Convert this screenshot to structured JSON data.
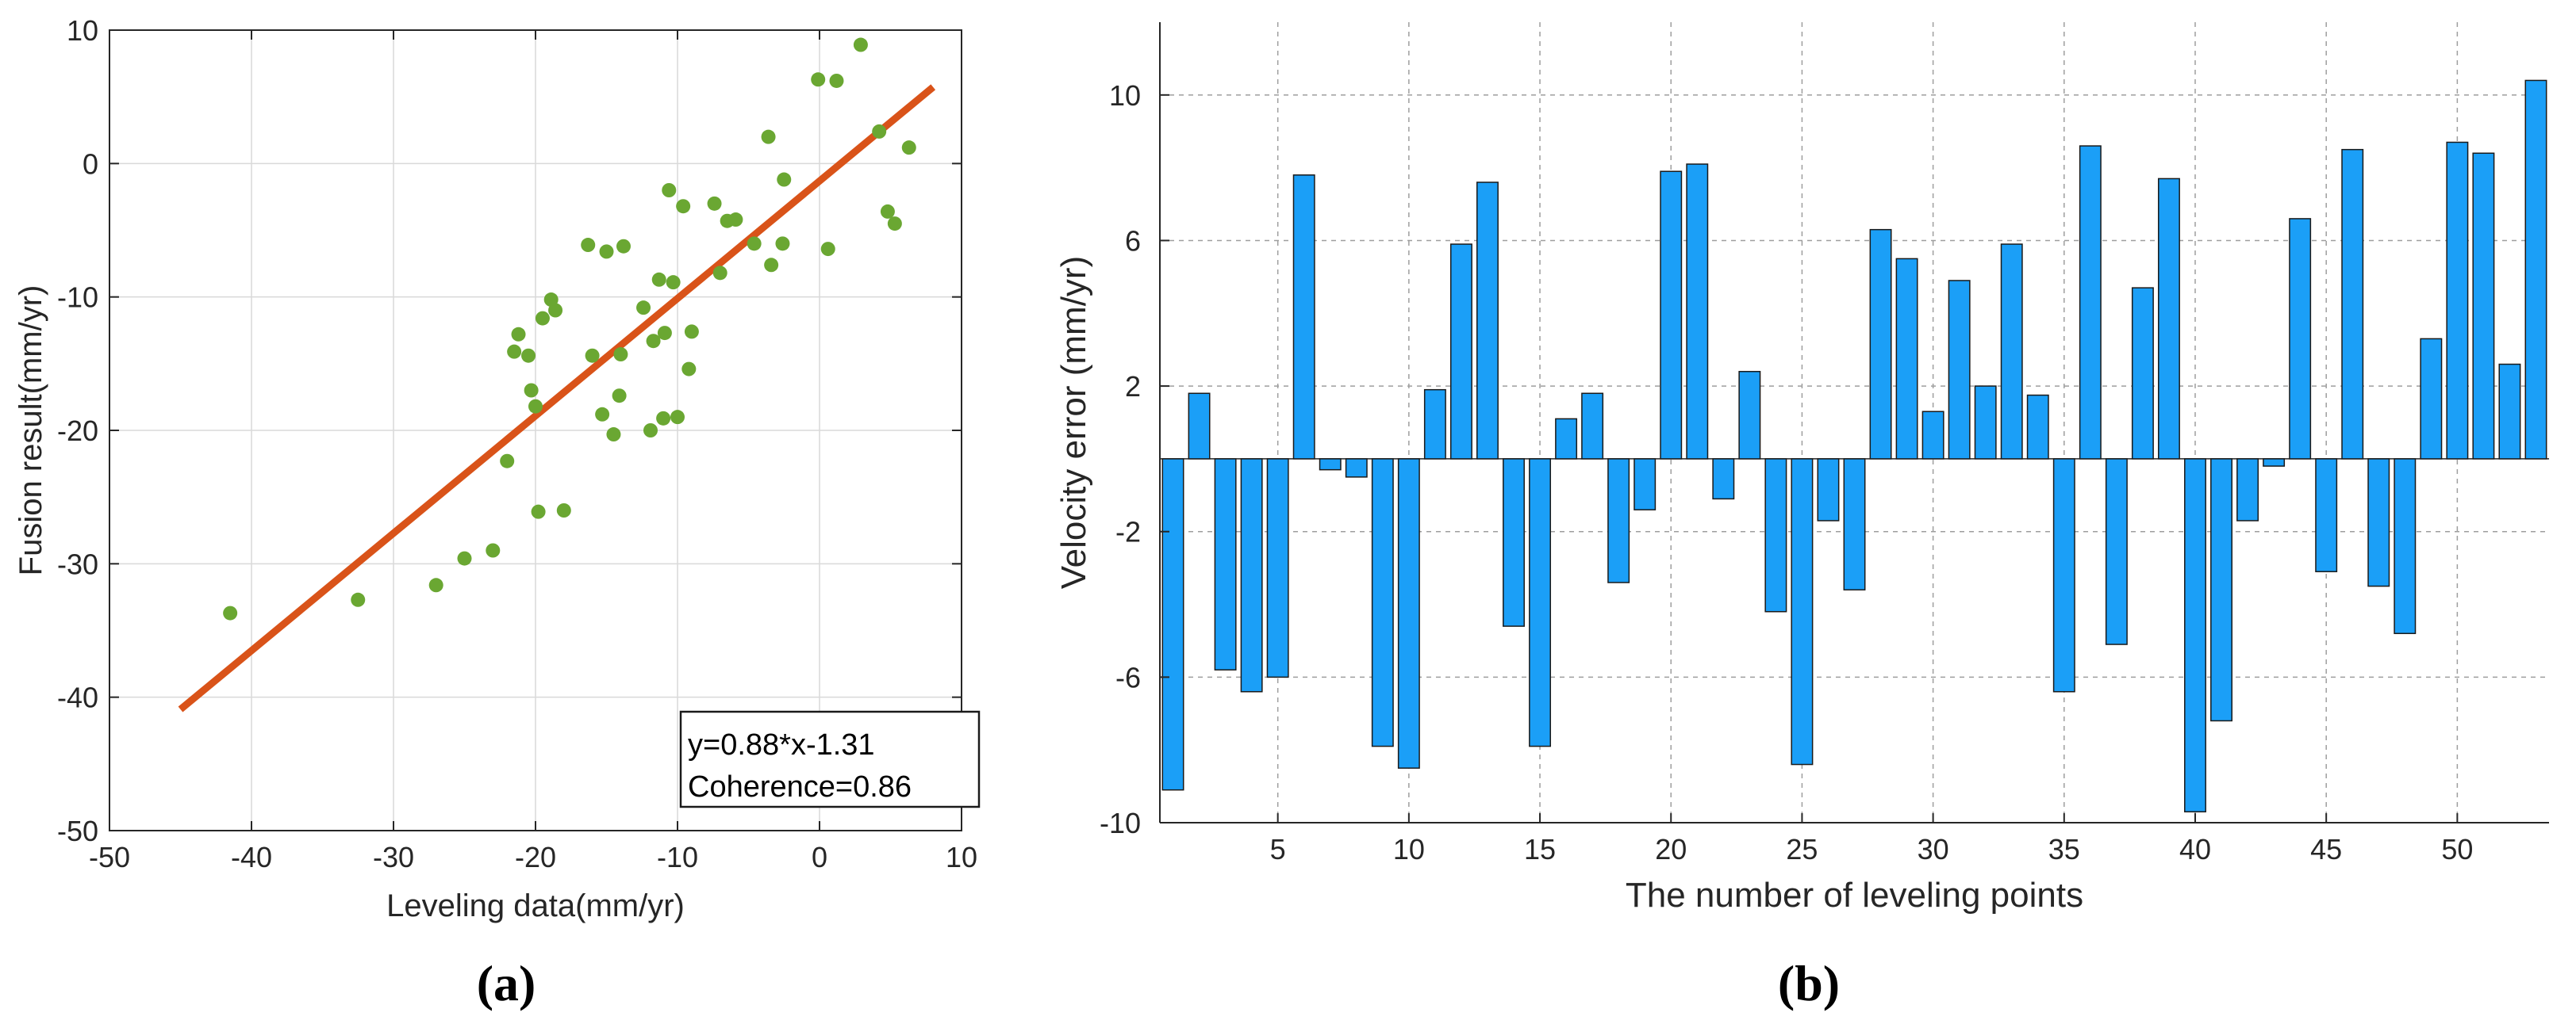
{
  "colors": {
    "scatter_point": "#6aa732",
    "fit_line": "#d95319",
    "bar_fill": "#1b9ff7",
    "bar_edge": "#1a1a1a",
    "grid": "#d9d9d9",
    "axis": "#262626"
  },
  "panels": {
    "a_label": "(a)",
    "b_label": "(b)"
  },
  "chart_data": [
    {
      "type": "scatter",
      "panel": "(a)",
      "xlabel": "Leveling data(mm/yr)",
      "ylabel": "Fusion result(mm/yr)",
      "xlim": [
        -50,
        10
      ],
      "ylim": [
        -50,
        10
      ],
      "xticks": [
        -50,
        -40,
        -30,
        -20,
        -10,
        0,
        10
      ],
      "yticks": [
        -50,
        -40,
        -30,
        -20,
        -10,
        0,
        10
      ],
      "grid": true,
      "fit": {
        "slope": 0.88,
        "intercept": -1.31,
        "x_range": [
          -45,
          8
        ]
      },
      "legend_lines": [
        "y=0.88*x-1.31",
        "Coherence=0.86"
      ],
      "legend_position": "bottom-right",
      "points": [
        [
          -41.5,
          -33.7
        ],
        [
          -32.5,
          -32.7
        ],
        [
          -27.0,
          -31.6
        ],
        [
          -25.0,
          -29.6
        ],
        [
          -23.0,
          -29.0
        ],
        [
          -22.0,
          -22.3
        ],
        [
          -21.5,
          -14.1
        ],
        [
          -21.2,
          -12.8
        ],
        [
          -20.5,
          -14.4
        ],
        [
          -20.3,
          -17.0
        ],
        [
          -20.0,
          -18.2
        ],
        [
          -19.8,
          -26.1
        ],
        [
          -19.5,
          -11.6
        ],
        [
          -18.9,
          -10.2
        ],
        [
          -18.6,
          -11.0
        ],
        [
          -18.0,
          -26.0
        ],
        [
          -16.3,
          -6.1
        ],
        [
          -16.0,
          -14.4
        ],
        [
          -15.3,
          -18.8
        ],
        [
          -15.0,
          -6.6
        ],
        [
          -14.5,
          -20.3
        ],
        [
          -14.1,
          -17.4
        ],
        [
          -14.0,
          -14.3
        ],
        [
          -13.8,
          -6.2
        ],
        [
          -12.4,
          -10.8
        ],
        [
          -11.9,
          -20.0
        ],
        [
          -11.7,
          -13.3
        ],
        [
          -11.3,
          -8.7
        ],
        [
          -11.0,
          -19.1
        ],
        [
          -10.9,
          -12.7
        ],
        [
          -10.6,
          -2.0
        ],
        [
          -10.3,
          -8.9
        ],
        [
          -10.0,
          -19.0
        ],
        [
          -9.6,
          -3.2
        ],
        [
          -9.2,
          -15.4
        ],
        [
          -9.0,
          -12.6
        ],
        [
          -7.4,
          -3.0
        ],
        [
          -7.0,
          -8.2
        ],
        [
          -6.5,
          -4.3
        ],
        [
          -5.9,
          -4.2
        ],
        [
          -4.6,
          -6.0
        ],
        [
          -3.6,
          2.0
        ],
        [
          -3.4,
          -7.6
        ],
        [
          -2.6,
          -6.0
        ],
        [
          -2.5,
          -1.2
        ],
        [
          -0.1,
          6.3
        ],
        [
          0.6,
          -6.4
        ],
        [
          1.2,
          6.2
        ],
        [
          2.9,
          8.9
        ],
        [
          4.2,
          2.4
        ],
        [
          4.8,
          -3.6
        ],
        [
          5.3,
          -4.5
        ],
        [
          6.3,
          1.2
        ]
      ]
    },
    {
      "type": "bar",
      "panel": "(b)",
      "xlabel": "The number of leveling points",
      "ylabel": "Velocity error (mm/yr)",
      "xlim": [
        0.5,
        53.5
      ],
      "ylim": [
        -10,
        12
      ],
      "xticks": [
        5,
        10,
        15,
        20,
        25,
        30,
        35,
        40,
        45,
        50
      ],
      "yticks": [
        -10,
        -6,
        -2,
        2,
        6,
        10
      ],
      "grid": true,
      "categories": [
        1,
        2,
        3,
        4,
        5,
        6,
        7,
        8,
        9,
        10,
        11,
        12,
        13,
        14,
        15,
        16,
        17,
        18,
        19,
        20,
        21,
        22,
        23,
        24,
        25,
        26,
        27,
        28,
        29,
        30,
        31,
        32,
        33,
        34,
        35,
        36,
        37,
        38,
        39,
        40,
        41,
        42,
        43,
        44,
        45,
        46,
        47,
        48,
        49,
        50,
        51,
        52,
        53
      ],
      "values": [
        -9.1,
        1.8,
        -5.8,
        -6.4,
        -6.0,
        7.8,
        -0.3,
        -0.5,
        -7.9,
        -8.5,
        1.9,
        5.9,
        7.6,
        -4.6,
        -7.9,
        1.1,
        1.8,
        -3.4,
        -1.4,
        7.9,
        8.1,
        -1.1,
        2.4,
        -4.2,
        -8.4,
        -1.7,
        -3.6,
        6.3,
        5.5,
        1.3,
        4.9,
        2.0,
        5.9,
        1.75,
        -6.4,
        8.6,
        -5.1,
        4.7,
        7.7,
        -9.7,
        -7.2,
        -1.7,
        -0.2,
        6.6,
        -3.1,
        8.5,
        -3.5,
        -4.8,
        3.3,
        8.7,
        8.4,
        2.6,
        10.4
      ]
    }
  ]
}
